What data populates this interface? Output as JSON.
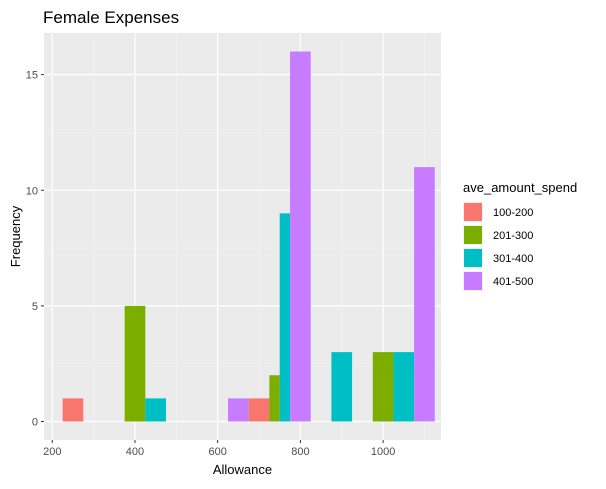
{
  "chart_data": {
    "type": "bar",
    "title": "Female Expenses",
    "xlabel": "Allowance",
    "ylabel": "Frequency",
    "xlim": [
      180,
      1140
    ],
    "ylim": [
      -0.8,
      16.8
    ],
    "bin_width": 50,
    "x_ticks": [
      200,
      400,
      600,
      800,
      1000
    ],
    "x_tick_labels": [
      "200",
      "400",
      "600",
      "800",
      "1000"
    ],
    "y_ticks": [
      0,
      5,
      10,
      15
    ],
    "y_tick_labels": [
      "0",
      "5",
      "10",
      "15"
    ],
    "grid": true,
    "legend": {
      "title": "ave_amount_spend",
      "position": "right"
    },
    "series": [
      {
        "name": "100-200",
        "color": "#F8766D",
        "points": [
          {
            "x": 250,
            "y": 1
          },
          {
            "x": 700,
            "y": 1
          }
        ]
      },
      {
        "name": "201-300",
        "color": "#7CAE00",
        "points": [
          {
            "x": 400,
            "y": 5
          },
          {
            "x": 750,
            "y": 2
          },
          {
            "x": 1000,
            "y": 3
          }
        ]
      },
      {
        "name": "301-400",
        "color": "#00BFC4",
        "points": [
          {
            "x": 450,
            "y": 1
          },
          {
            "x": 750,
            "y": 9
          },
          {
            "x": 900,
            "y": 3
          },
          {
            "x": 1050,
            "y": 3
          }
        ]
      },
      {
        "name": "401-500",
        "color": "#C77CFF",
        "points": [
          {
            "x": 650,
            "y": 1
          },
          {
            "x": 800,
            "y": 16
          },
          {
            "x": 1100,
            "y": 11
          }
        ]
      }
    ]
  }
}
